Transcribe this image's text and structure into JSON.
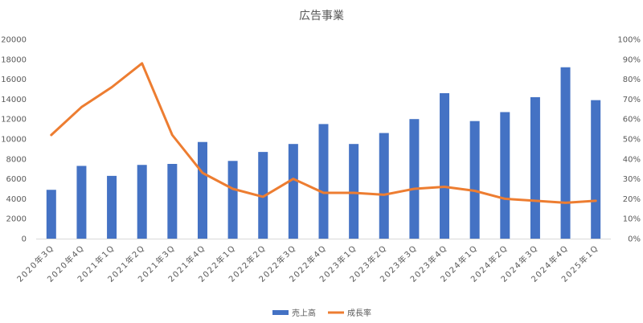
{
  "chart_data": {
    "type": "bar",
    "title": "広告事業",
    "categories": [
      "2020年3Q",
      "2020年4Q",
      "2021年1Q",
      "2021年2Q",
      "2021年3Q",
      "2021年4Q",
      "2022年1Q",
      "2022年2Q",
      "2022年3Q",
      "2022年4Q",
      "2023年1Q",
      "2023年2Q",
      "2023年3Q",
      "2023年4Q",
      "2024年1Q",
      "2024年2Q",
      "2024年3Q",
      "2024年4Q",
      "2025年1Q"
    ],
    "series": [
      {
        "name": "売上高",
        "kind": "bar",
        "axis": "left",
        "color": "#4472C4",
        "values": [
          4900,
          7300,
          6300,
          7400,
          7500,
          9700,
          7800,
          8700,
          9500,
          11500,
          9500,
          10600,
          12000,
          14600,
          11800,
          12700,
          14200,
          17200,
          13900
        ]
      },
      {
        "name": "成長率",
        "kind": "line",
        "axis": "right",
        "color": "#ED7D31",
        "values": [
          52,
          66,
          76,
          88,
          52,
          33,
          25,
          21,
          30,
          23,
          23,
          22,
          25,
          26,
          24,
          20,
          19,
          18,
          19
        ]
      }
    ],
    "y_left": {
      "min": 0,
      "max": 20000,
      "step": 2000,
      "ticks": [
        "0",
        "2000",
        "4000",
        "6000",
        "8000",
        "10000",
        "12000",
        "14000",
        "16000",
        "18000",
        "20000"
      ]
    },
    "y_right": {
      "min": 0,
      "max": 100,
      "step": 10,
      "ticks": [
        "0%",
        "10%",
        "20%",
        "30%",
        "40%",
        "50%",
        "60%",
        "70%",
        "80%",
        "90%",
        "100%"
      ]
    },
    "xlabel": "",
    "ylabel": "",
    "grid": false,
    "legend_position": "bottom"
  }
}
